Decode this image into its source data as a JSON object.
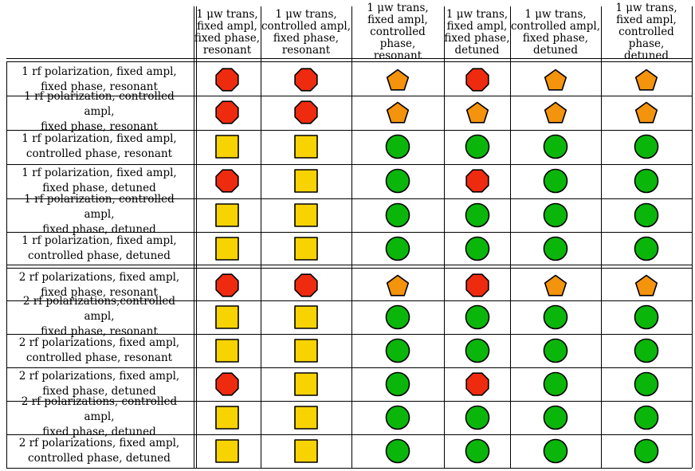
{
  "columns": [
    [
      "1 μw trans,",
      "fixed ampl,",
      "fixed phase,",
      "resonant"
    ],
    [
      "1 μw trans,",
      "controlled ampl,",
      "fixed phase,",
      "resonant"
    ],
    [
      "1 μw trans,",
      "fixed ampl,",
      "controlled phase,",
      "resonant"
    ],
    [
      "1 μw trans,",
      "fixed ampl,",
      "fixed phase,",
      "detuned"
    ],
    [
      "1 μw trans,",
      "controlled ampl,",
      "fixed phase,",
      "detuned"
    ],
    [
      "1 μw trans,",
      "fixed ampl,",
      "controlled phase,",
      "detuned"
    ]
  ],
  "groups": [
    {
      "rows": [
        {
          "label": [
            "1 rf polarization, fixed ampl,",
            "fixed phase, resonant"
          ],
          "cells": [
            "octagon",
            "octagon",
            "pentagon",
            "octagon",
            "pentagon",
            "pentagon"
          ]
        },
        {
          "label": [
            "1 rf polarization, controlled ampl,",
            "fixed phase, resonant"
          ],
          "cells": [
            "octagon",
            "octagon",
            "pentagon",
            "pentagon",
            "pentagon",
            "pentagon"
          ]
        },
        {
          "label": [
            "1 rf polarization, fixed ampl,",
            "controlled phase, resonant"
          ],
          "cells": [
            "square",
            "square",
            "circle",
            "circle",
            "circle",
            "circle"
          ]
        },
        {
          "label": [
            "1 rf polarization, fixed ampl,",
            "fixed phase, detuned"
          ],
          "cells": [
            "octagon",
            "square",
            "circle",
            "octagon",
            "circle",
            "circle"
          ]
        },
        {
          "label": [
            "1 rf polarization, controlled ampl,",
            "fixed phase, detuned"
          ],
          "cells": [
            "square",
            "square",
            "circle",
            "circle",
            "circle",
            "circle"
          ]
        },
        {
          "label": [
            "1 rf polarization, fixed ampl,",
            "controlled phase, detuned"
          ],
          "cells": [
            "square",
            "square",
            "circle",
            "circle",
            "circle",
            "circle"
          ]
        }
      ]
    },
    {
      "rows": [
        {
          "label": [
            "2 rf polarizations, fixed ampl,",
            "fixed phase, resonant"
          ],
          "cells": [
            "octagon",
            "octagon",
            "pentagon",
            "octagon",
            "pentagon",
            "pentagon"
          ]
        },
        {
          "label": [
            "2 rf polarizations,controlled ampl,",
            "fixed phase, resonant"
          ],
          "cells": [
            "square",
            "square",
            "circle",
            "circle",
            "circle",
            "circle"
          ]
        },
        {
          "label": [
            "2 rf polarizations, fixed ampl,",
            "controlled phase, resonant"
          ],
          "cells": [
            "square",
            "square",
            "circle",
            "circle",
            "circle",
            "circle"
          ]
        },
        {
          "label": [
            "2 rf polarizations, fixed ampl,",
            "fixed phase, detuned"
          ],
          "cells": [
            "octagon",
            "square",
            "circle",
            "octagon",
            "circle",
            "circle"
          ]
        },
        {
          "label": [
            "2 rf polarizations, controlled ampl,",
            "fixed phase, detuned"
          ],
          "cells": [
            "square",
            "square",
            "circle",
            "circle",
            "circle",
            "circle"
          ]
        },
        {
          "label": [
            "2 rf polarizations, fixed ampl,",
            "controlled phase, detuned"
          ],
          "cells": [
            "square",
            "square",
            "circle",
            "circle",
            "circle",
            "circle"
          ]
        }
      ]
    }
  ],
  "shape_colors": {
    "octagon": "#ee2a0f",
    "pentagon": "#f4930c",
    "square": "#f7d302",
    "circle": "#0bb60b"
  }
}
